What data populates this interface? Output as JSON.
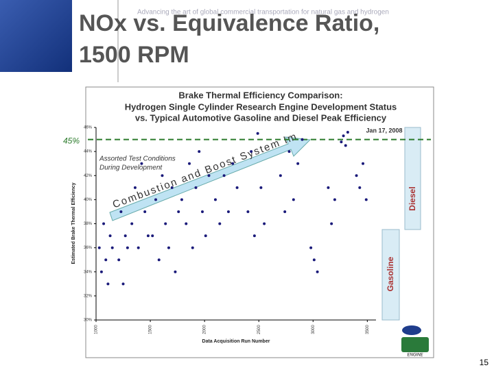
{
  "slide": {
    "tagline": "Advancing the art of global commercial transportation for natural gas and hydrogen",
    "title_lines": [
      "NOx vs. Equivalence Ratio,",
      "1500 RPM"
    ],
    "page_number": "15",
    "logo": "ENGINE"
  },
  "chart_data": {
    "type": "scatter",
    "title_lines": [
      "Brake Thermal Efficiency Comparison:",
      "Hydrogen Single Cylinder Research Engine Development Status",
      "vs. Typical Automotive Gasoline and Diesel Peak Efficiency"
    ],
    "x_label": "Data Acquisition Run Number",
    "y_label": "Estimated Brake Thermal Efficiency",
    "date": "Jan 17, 2008",
    "conditions": [
      "Assorted Test Conditions",
      "During Development"
    ],
    "arrow_label": "Combustion and Boost System Improvements",
    "reference_line": {
      "value": 45,
      "label": "45%"
    },
    "bands": [
      {
        "name": "Gasoline",
        "color": "#d9ecf5"
      },
      {
        "name": "Diesel",
        "color": "#d9ecf5"
      }
    ],
    "xlim": [
      1000,
      3580
    ],
    "xticks": [
      1000,
      1500,
      2000,
      2500,
      3000,
      3500
    ],
    "ylim": [
      30,
      46
    ],
    "yticks": [
      {
        "value": 30,
        "label": "30%"
      },
      {
        "value": 32,
        "label": "32%"
      },
      {
        "value": 34,
        "label": "34%"
      },
      {
        "value": 36,
        "label": "36%"
      },
      {
        "value": 38,
        "label": "38%"
      },
      {
        "value": 40,
        "label": "40%"
      },
      {
        "value": 42,
        "label": "42%"
      },
      {
        "value": 44,
        "label": "44%"
      },
      {
        "value": 46,
        "label": "46%"
      }
    ],
    "color": "#1a1a7a",
    "x": [
      1030,
      1050,
      1070,
      1090,
      1110,
      1130,
      1150,
      1210,
      1230,
      1250,
      1270,
      1290,
      1330,
      1360,
      1390,
      1420,
      1450,
      1480,
      1520,
      1550,
      1580,
      1610,
      1640,
      1670,
      1700,
      1730,
      1760,
      1790,
      1830,
      1860,
      1890,
      1920,
      1950,
      1980,
      2010,
      2040,
      2100,
      2140,
      2180,
      2220,
      2260,
      2300,
      2400,
      2430,
      2460,
      2490,
      2520,
      2550,
      2700,
      2740,
      2780,
      2820,
      2860,
      2900,
      2980,
      3010,
      3040,
      3140,
      3170,
      3200,
      3260,
      3280,
      3300,
      3320,
      3400,
      3430,
      3460,
      3490
    ],
    "y": [
      36,
      34,
      38,
      35,
      33,
      37,
      36,
      35,
      39,
      33,
      37,
      36,
      38,
      41,
      36,
      43,
      39,
      37,
      37,
      40,
      35,
      42,
      38,
      36,
      41,
      34,
      39,
      40,
      38,
      43,
      36,
      41,
      44,
      39,
      37,
      42,
      40,
      38,
      42,
      39,
      43,
      41,
      39,
      44,
      37,
      45.5,
      41,
      38,
      42,
      39,
      44,
      40,
      43,
      45,
      36,
      35,
      34,
      41,
      38,
      40,
      44.8,
      45.3,
      44.5,
      45.6,
      42,
      41,
      43,
      40
    ]
  }
}
